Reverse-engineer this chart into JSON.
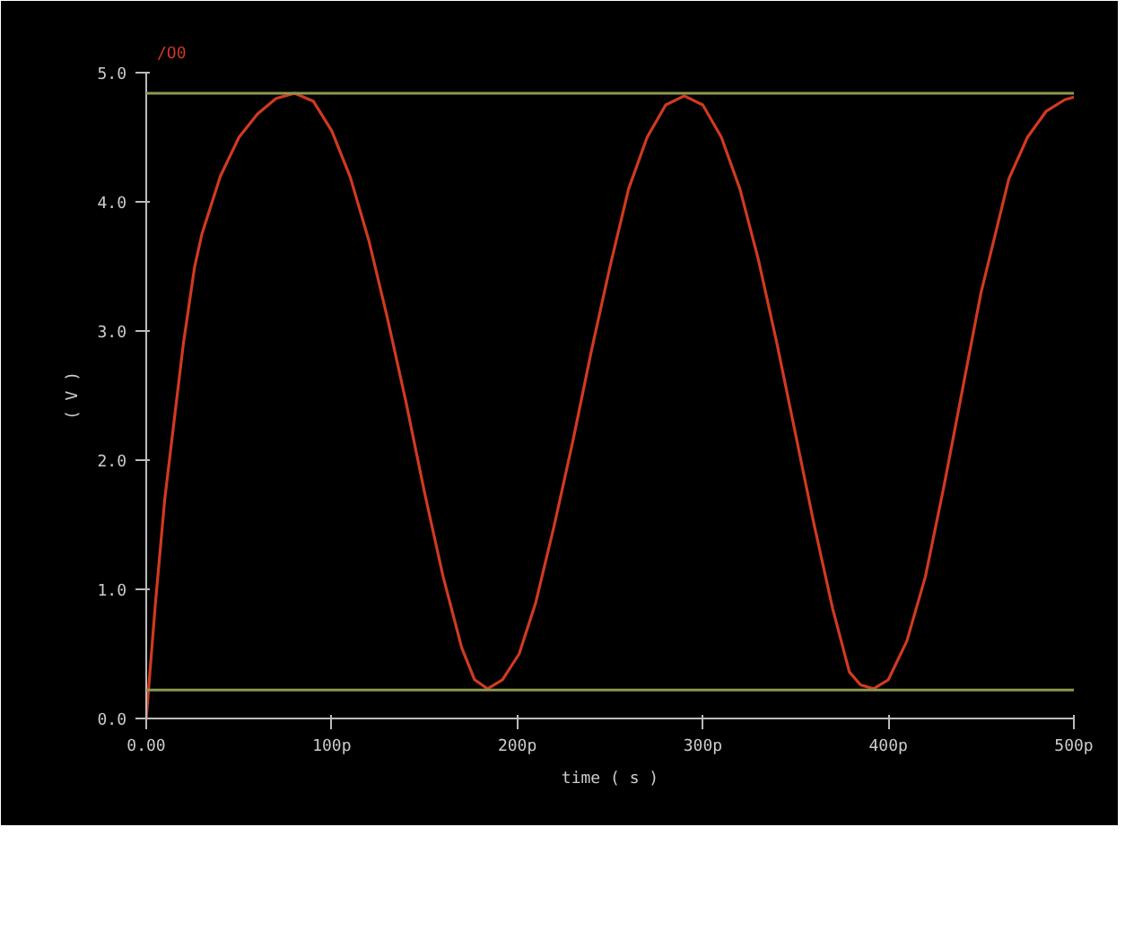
{
  "chart_data": {
    "type": "line",
    "xlabel": "time ( s )",
    "ylabel": "( V )",
    "xlim": [
      0,
      500
    ],
    "ylim": [
      0,
      5
    ],
    "xticks": [
      {
        "value": 0,
        "label": "0.00"
      },
      {
        "value": 100,
        "label": "100p"
      },
      {
        "value": 200,
        "label": "200p"
      },
      {
        "value": 300,
        "label": "300p"
      },
      {
        "value": 400,
        "label": "400p"
      },
      {
        "value": 500,
        "label": "500p"
      }
    ],
    "yticks": [
      {
        "value": 0,
        "label": "0.0"
      },
      {
        "value": 1,
        "label": "1.0"
      },
      {
        "value": 2,
        "label": "2.0"
      },
      {
        "value": 3,
        "label": "3.0"
      },
      {
        "value": 4,
        "label": "4.0"
      },
      {
        "value": 5,
        "label": "5.0"
      }
    ],
    "series": [
      {
        "name": "/O0",
        "color": "#d03a20",
        "x": [
          0,
          5,
          10,
          15,
          20,
          26,
          30,
          40,
          50,
          60,
          70,
          80,
          90,
          100,
          110,
          120,
          130,
          140,
          150,
          160,
          170,
          177,
          184,
          192,
          201,
          210,
          220,
          230,
          240,
          250,
          260,
          270,
          280,
          290,
          300,
          310,
          320,
          330,
          340,
          350,
          360,
          370,
          379,
          385,
          392,
          400,
          410,
          420,
          430,
          440,
          450,
          465,
          475,
          485,
          495,
          500
        ],
        "values": [
          0,
          0.9,
          1.7,
          2.3,
          2.9,
          3.49,
          3.75,
          4.2,
          4.5,
          4.68,
          4.8,
          4.84,
          4.78,
          4.55,
          4.19,
          3.7,
          3.1,
          2.45,
          1.75,
          1.1,
          0.55,
          0.3,
          0.23,
          0.3,
          0.5,
          0.9,
          1.5,
          2.15,
          2.85,
          3.5,
          4.1,
          4.5,
          4.75,
          4.82,
          4.75,
          4.5,
          4.1,
          3.55,
          2.9,
          2.2,
          1.5,
          0.85,
          0.36,
          0.26,
          0.23,
          0.3,
          0.6,
          1.1,
          1.8,
          2.55,
          3.3,
          4.18,
          4.5,
          4.7,
          4.79,
          4.81
        ]
      }
    ],
    "ref_lines": [
      {
        "axis": "y",
        "value": 4.84,
        "color": "#8a9a50"
      },
      {
        "axis": "y",
        "value": 0.22,
        "color": "#8a9a50"
      }
    ],
    "grid": false,
    "marker": "none",
    "line_style": "solid"
  }
}
